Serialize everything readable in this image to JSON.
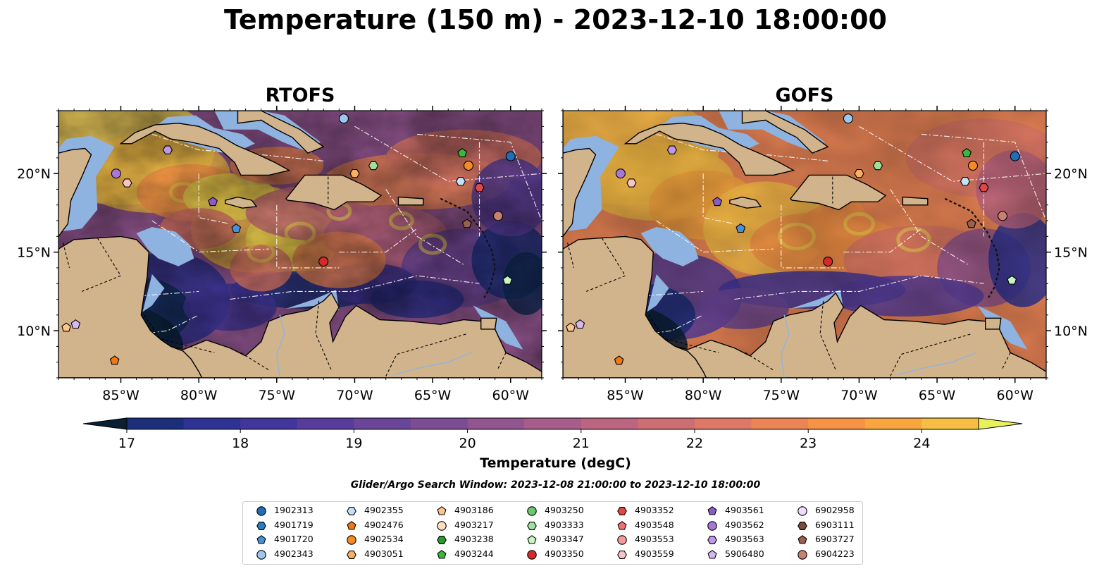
{
  "title": "Temperature (150 m) - 2023-12-10 18:00:00",
  "panels": [
    {
      "title": "RTOFS",
      "variant": "rtofs"
    },
    {
      "title": "GOFS",
      "variant": "gofs"
    }
  ],
  "colors": {
    "land": "#d2b48c",
    "shelf_water": "#8fb3e0",
    "marker_edge": "#000000",
    "eez_lines": "#ffffff"
  },
  "chart_data": {
    "type": "heatmap",
    "variable": "Temperature (degC)",
    "depth": "150 m",
    "time": "2023-12-10 18:00:00",
    "x_ticks": [
      "85°W",
      "80°W",
      "75°W",
      "70°W",
      "65°W",
      "60°W"
    ],
    "x_tick_values": [
      -85,
      -80,
      -75,
      -70,
      -65,
      -60
    ],
    "y_ticks": [
      "10°N",
      "15°N",
      "20°N"
    ],
    "y_tick_values": [
      10,
      15,
      20
    ],
    "xlim": [
      -89,
      -58
    ],
    "ylim": [
      7,
      24
    ],
    "colorbar": {
      "label": "Temperature (degC)",
      "min": 17,
      "max": 24.5,
      "step": 0.5,
      "extend": "both",
      "tick_labels": [
        "17",
        "18",
        "19",
        "20",
        "21",
        "22",
        "23",
        "24"
      ],
      "tick_values": [
        17,
        18,
        19,
        20,
        21,
        22,
        23,
        24
      ],
      "colors": [
        "#0a1f33",
        "#0f2a54",
        "#1c2f7a",
        "#2e3293",
        "#42369a",
        "#573d9b",
        "#6b4598",
        "#7d4d94",
        "#91558f",
        "#a75d89",
        "#bb6580",
        "#cd6e75",
        "#de7867",
        "#ec8556",
        "#f79346",
        "#faa63f",
        "#f7bd45",
        "#f1d64e",
        "#e8f15a"
      ]
    },
    "floats": [
      {
        "id": "1902313",
        "marker": "circle",
        "color": "#1f6fb8",
        "lon": -60.0,
        "lat": 21.1
      },
      {
        "id": "4901719",
        "marker": "hexagon",
        "color": "#2e7bc4",
        "lon": null,
        "lat": null
      },
      {
        "id": "4901720",
        "marker": "pentagon",
        "color": "#4a90d6",
        "lon": -77.6,
        "lat": 16.5
      },
      {
        "id": "4902343",
        "marker": "circle",
        "color": "#9cc8f0",
        "lon": -70.7,
        "lat": 23.5
      },
      {
        "id": "4902355",
        "marker": "hexagon",
        "color": "#c5e0f7",
        "lon": -63.2,
        "lat": 19.5
      },
      {
        "id": "4902476",
        "marker": "pentagon",
        "color": "#f07a10",
        "lon": -85.4,
        "lat": 8.1
      },
      {
        "id": "4902534",
        "marker": "circle",
        "color": "#f58a28",
        "lon": -62.7,
        "lat": 20.5
      },
      {
        "id": "4903051",
        "marker": "hexagon",
        "color": "#f9b060",
        "lon": -70.0,
        "lat": 20.0
      },
      {
        "id": "4903186",
        "marker": "pentagon",
        "color": "#fbc58c",
        "lon": -88.5,
        "lat": 10.2
      },
      {
        "id": "4903217",
        "marker": "circle",
        "color": "#fde0c0",
        "lon": null,
        "lat": null
      },
      {
        "id": "4903238",
        "marker": "hexagon",
        "color": "#2a9a2a",
        "lon": null,
        "lat": null
      },
      {
        "id": "4903244",
        "marker": "pentagon",
        "color": "#3ab83a",
        "lon": -63.1,
        "lat": 21.3
      },
      {
        "id": "4903250",
        "marker": "circle",
        "color": "#6cc86c",
        "lon": null,
        "lat": null
      },
      {
        "id": "4903333",
        "marker": "hexagon",
        "color": "#9fe09f",
        "lon": -68.8,
        "lat": 20.5
      },
      {
        "id": "4903347",
        "marker": "pentagon",
        "color": "#c8f5c0",
        "lon": -60.2,
        "lat": 13.2
      },
      {
        "id": "4903350",
        "marker": "circle",
        "color": "#d42a2a",
        "lon": -72.0,
        "lat": 14.4
      },
      {
        "id": "4903352",
        "marker": "hexagon",
        "color": "#e04848",
        "lon": -62.0,
        "lat": 19.1
      },
      {
        "id": "4903548",
        "marker": "pentagon",
        "color": "#ee7070",
        "lon": null,
        "lat": null
      },
      {
        "id": "4903553",
        "marker": "circle",
        "color": "#f59a9a",
        "lon": null,
        "lat": null
      },
      {
        "id": "4903559",
        "marker": "hexagon",
        "color": "#fbc4c4",
        "lon": -84.6,
        "lat": 19.4
      },
      {
        "id": "4903561",
        "marker": "pentagon",
        "color": "#8a5cc8",
        "lon": -79.1,
        "lat": 18.2
      },
      {
        "id": "4903562",
        "marker": "circle",
        "color": "#a678d8",
        "lon": -85.3,
        "lat": 20.0
      },
      {
        "id": "4903563",
        "marker": "hexagon",
        "color": "#bf98e6",
        "lon": -82.0,
        "lat": 21.5
      },
      {
        "id": "5906480",
        "marker": "pentagon",
        "color": "#d5b8f2",
        "lon": -87.9,
        "lat": 10.4
      },
      {
        "id": "6902958",
        "marker": "circle",
        "color": "#f0dcfb",
        "lon": null,
        "lat": null
      },
      {
        "id": "6903111",
        "marker": "hexagon",
        "color": "#7a4a3a",
        "lon": null,
        "lat": null
      },
      {
        "id": "6903727",
        "marker": "pentagon",
        "color": "#9a6050",
        "lon": -62.8,
        "lat": 16.8
      },
      {
        "id": "6904223",
        "marker": "circle",
        "color": "#c88070",
        "lon": -60.8,
        "lat": 17.3
      }
    ]
  },
  "colorbar_label": "Temperature (degC)",
  "search_window": "Glider/Argo Search Window: 2023-12-08 21:00:00 to 2023-12-10 18:00:00"
}
